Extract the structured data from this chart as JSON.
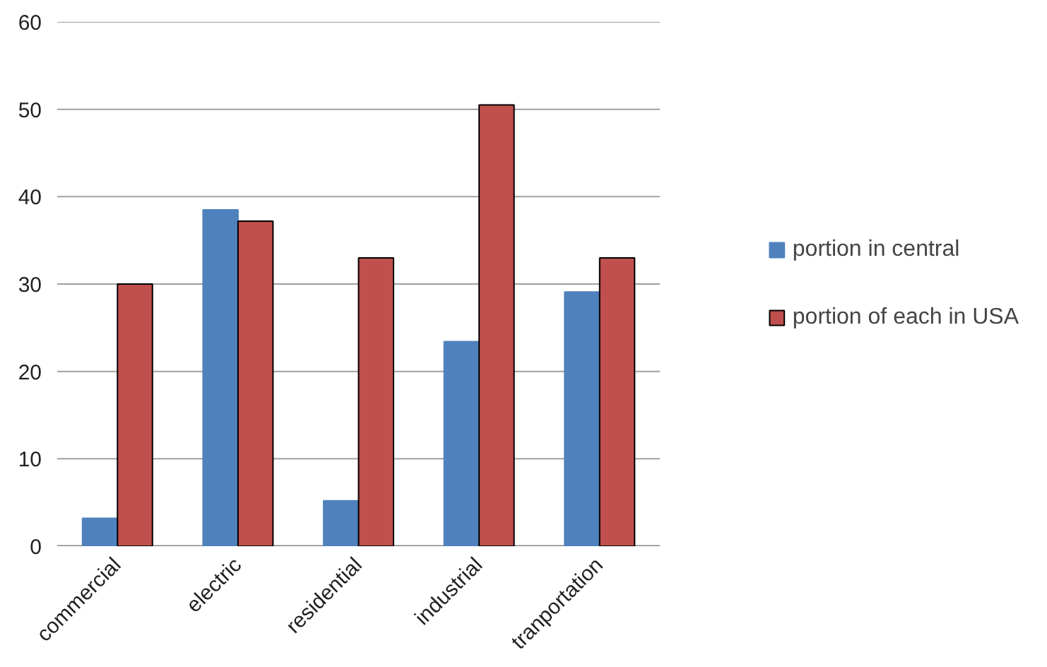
{
  "chart_data": {
    "type": "bar",
    "categories": [
      "commercial",
      "electric",
      "residential",
      "industrial",
      "tranportation"
    ],
    "series": [
      {
        "name": "portion in central",
        "color": "#4f81bd",
        "values": [
          3.2,
          38.5,
          5.2,
          23.4,
          29.1
        ]
      },
      {
        "name": "portion of each in USA",
        "color": "#c0504d",
        "values": [
          30,
          37.2,
          33,
          50.5,
          33
        ]
      }
    ],
    "ylim": [
      0,
      60
    ],
    "yticks": [
      0,
      10,
      20,
      30,
      40,
      50,
      60
    ],
    "grid": "y",
    "legend": "right"
  }
}
